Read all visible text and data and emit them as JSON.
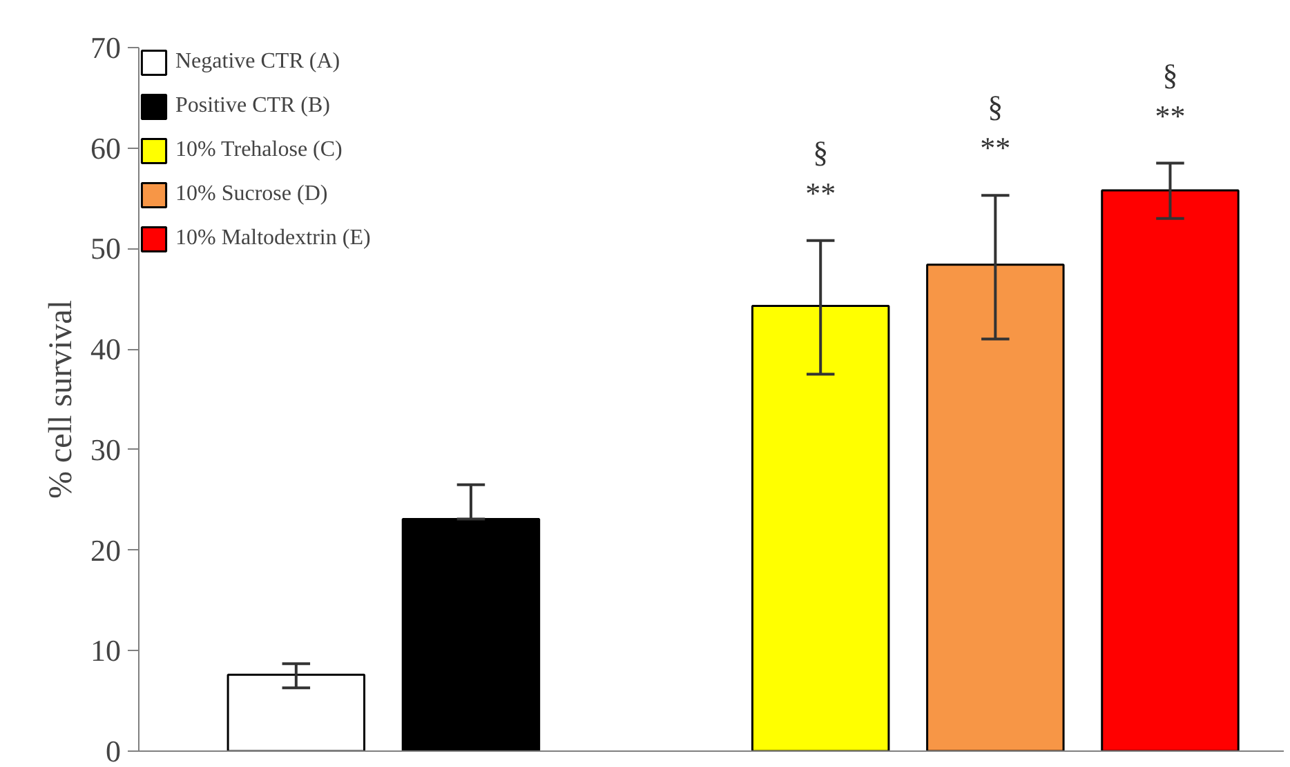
{
  "chart_data": {
    "type": "bar",
    "ylabel": "% cell survival",
    "categories": [
      null,
      null,
      null,
      null,
      null,
      null
    ],
    "series": [
      {
        "name": "Negative CTR (A)",
        "color": "#ffffff",
        "values": [
          7.6,
          null,
          null,
          null,
          null,
          null
        ],
        "errors": [
          [
            6.3,
            8.7
          ],
          null,
          null,
          null,
          null,
          null
        ]
      },
      {
        "name": "Positive CTR (B)",
        "color": "#000000",
        "values": [
          null,
          23.1,
          null,
          null,
          null,
          null
        ],
        "errors": [
          null,
          [
            23.1,
            26.5
          ],
          null,
          null,
          null,
          null
        ]
      },
      {
        "name": "10% Trehalose (C)",
        "color": "#ffff00",
        "values": [
          null,
          null,
          null,
          44.3,
          null,
          null
        ],
        "errors": [
          null,
          null,
          null,
          [
            37.5,
            50.8
          ],
          null,
          null
        ]
      },
      {
        "name": "10% Sucrose (D)",
        "color": "#f79646",
        "values": [
          null,
          null,
          null,
          null,
          48.4,
          null
        ],
        "errors": [
          null,
          null,
          null,
          null,
          [
            41.0,
            55.3
          ],
          null
        ]
      },
      {
        "name": "10% Maltodextrin (E)",
        "color": "#ff0000",
        "values": [
          null,
          null,
          null,
          null,
          null,
          55.8
        ],
        "errors": [
          null,
          null,
          null,
          null,
          null,
          [
            53.0,
            58.5
          ]
        ]
      }
    ],
    "annotations": [
      "§",
      "**",
      "§",
      "**",
      "§",
      "**"
    ],
    "ylim": [
      0,
      70
    ],
    "yticks": [
      0,
      10,
      20,
      30,
      40,
      50,
      60,
      70
    ],
    "grid": false,
    "legend": "top left"
  }
}
